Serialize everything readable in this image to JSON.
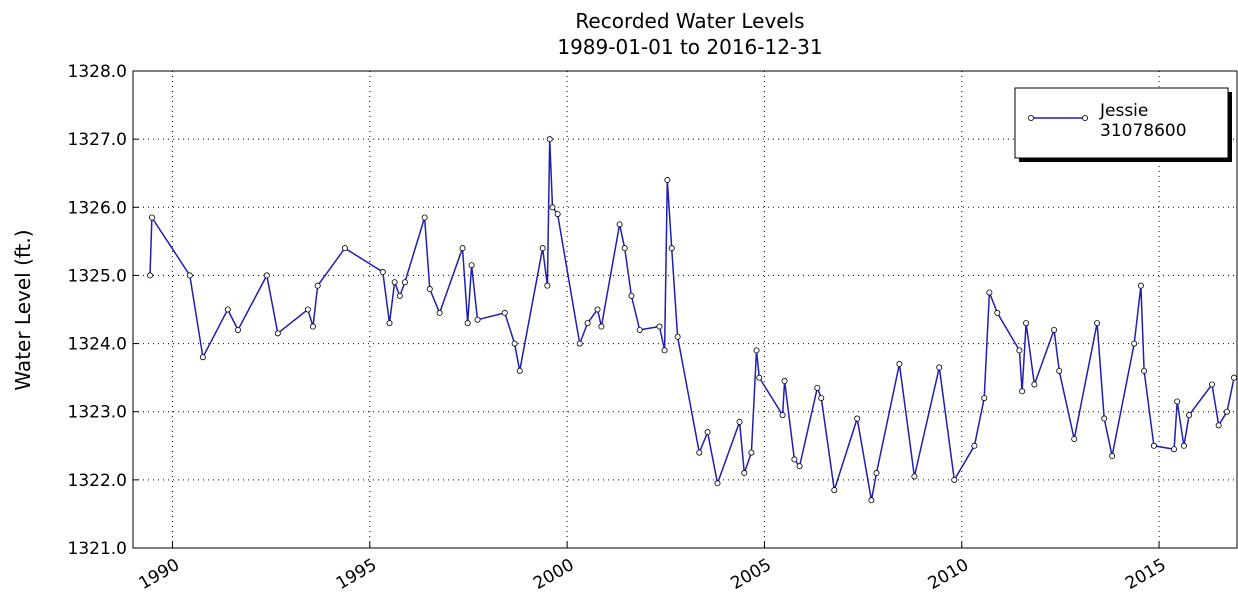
{
  "chart_data": {
    "type": "line",
    "title": "Recorded Water Levels",
    "subtitle": "1989-01-01 to 2016-12-31",
    "y_label": "Water Level (ft.)",
    "x": [
      1989.43,
      1989.48,
      1990.44,
      1990.77,
      1991.4,
      1991.66,
      1992.39,
      1992.67,
      1993.43,
      1993.56,
      1993.68,
      1994.37,
      1995.33,
      1995.5,
      1995.63,
      1995.76,
      1995.89,
      1996.39,
      1996.52,
      1996.77,
      1997.35,
      1997.48,
      1997.58,
      1997.73,
      1998.42,
      1998.67,
      1998.8,
      1999.38,
      1999.5,
      1999.56,
      1999.63,
      1999.76,
      2000.32,
      2000.52,
      2000.77,
      2000.87,
      2001.33,
      2001.46,
      2001.63,
      2001.84,
      2002.34,
      2002.47,
      2002.54,
      2002.65,
      2002.8,
      2003.35,
      2003.56,
      2003.81,
      2004.37,
      2004.49,
      2004.67,
      2004.8,
      2004.87,
      2005.46,
      2005.51,
      2005.76,
      2005.89,
      2006.34,
      2006.44,
      2006.77,
      2007.35,
      2007.71,
      2007.84,
      2008.42,
      2008.8,
      2009.43,
      2009.81,
      2010.32,
      2010.57,
      2010.7,
      2010.9,
      2011.46,
      2011.53,
      2011.63,
      2011.84,
      2012.34,
      2012.47,
      2012.85,
      2013.43,
      2013.61,
      2013.81,
      2014.37,
      2014.54,
      2014.62,
      2014.87,
      2015.38,
      2015.46,
      2015.63,
      2015.76,
      2016.34,
      2016.51,
      2016.72,
      2016.9
    ],
    "series": [
      {
        "name": "Jessie\n31078600",
        "color": "#1f1fb0",
        "values": [
          1325.0,
          1325.85,
          1325.0,
          1323.8,
          1324.5,
          1324.2,
          1325.0,
          1324.15,
          1324.5,
          1324.25,
          1324.85,
          1325.4,
          1325.05,
          1324.3,
          1324.9,
          1324.7,
          1324.9,
          1325.85,
          1324.8,
          1324.45,
          1325.4,
          1324.3,
          1325.15,
          1324.35,
          1324.45,
          1324.0,
          1323.6,
          1325.4,
          1324.85,
          1327.0,
          1326.0,
          1325.9,
          1324.0,
          1324.3,
          1324.5,
          1324.25,
          1325.75,
          1325.4,
          1324.7,
          1324.2,
          1324.25,
          1323.9,
          1326.4,
          1325.4,
          1324.1,
          1322.4,
          1322.7,
          1321.95,
          1322.85,
          1322.1,
          1322.4,
          1323.9,
          1323.5,
          1322.95,
          1323.45,
          1322.3,
          1322.2,
          1323.35,
          1323.2,
          1321.85,
          1322.9,
          1321.7,
          1322.1,
          1323.7,
          1322.05,
          1323.65,
          1322.0,
          1322.5,
          1323.2,
          1324.75,
          1324.45,
          1323.9,
          1323.3,
          1324.3,
          1323.4,
          1324.2,
          1323.6,
          1322.6,
          1324.3,
          1322.9,
          1322.35,
          1324.0,
          1324.85,
          1323.6,
          1322.5,
          1322.45,
          1323.15,
          1322.5,
          1322.95,
          1323.4,
          1322.8,
          1323.0,
          1323.5
        ]
      }
    ],
    "xlim": [
      1989.0,
      2017.0
    ],
    "xticks": [
      1990,
      1995,
      2000,
      2005,
      2010,
      2015
    ],
    "ylim": [
      1321,
      1328
    ],
    "yticks": [
      {
        "value": 1321,
        "label": "1321.0"
      },
      {
        "value": 1322,
        "label": "1322.0"
      },
      {
        "value": 1323,
        "label": "1323.0"
      },
      {
        "value": 1324,
        "label": "1324.0"
      },
      {
        "value": 1325,
        "label": "1325.0"
      },
      {
        "value": 1326,
        "label": "1326.0"
      },
      {
        "value": 1327,
        "label": "1327.0"
      },
      {
        "value": 1328,
        "label": "1328.0"
      }
    ],
    "grid": true,
    "legend": "upper right"
  }
}
